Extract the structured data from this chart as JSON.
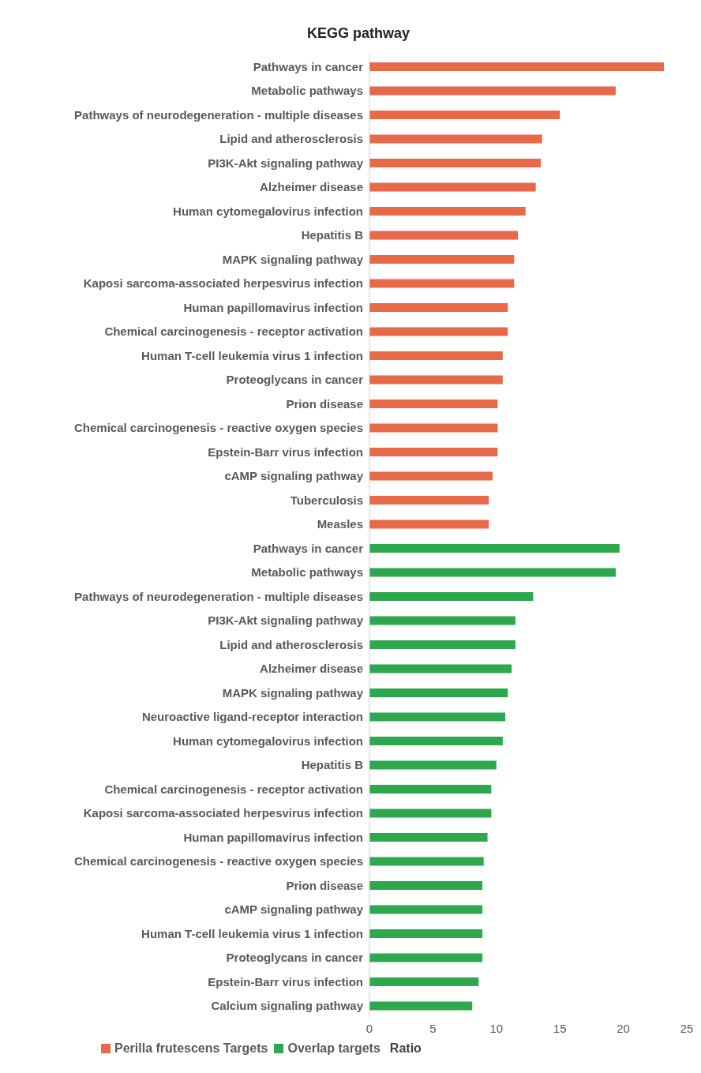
{
  "chart_data": {
    "type": "bar",
    "orientation": "horizontal",
    "title": "KEGG pathway",
    "xlabel": "Ratio",
    "categories": [
      "Pathways in cancer",
      "Metabolic pathways",
      "Pathways of neurodegeneration - multiple diseases",
      "Lipid and atherosclerosis",
      "PI3K-Akt signaling pathway",
      "Alzheimer disease",
      "Human cytomegalovirus infection",
      "Hepatitis B",
      "MAPK signaling pathway",
      "Kaposi sarcoma-associated herpesvirus infection",
      "Human papillomavirus infection",
      "Chemical carcinogenesis - receptor activation",
      "Human T-cell leukemia virus 1 infection",
      "Proteoglycans in cancer",
      "Prion disease",
      "Chemical carcinogenesis - reactive oxygen species",
      "Epstein-Barr virus infection",
      "cAMP signaling pathway",
      "Tuberculosis",
      "Measles",
      "Pathways in cancer",
      "Metabolic pathways",
      "Pathways of neurodegeneration - multiple diseases",
      "PI3K-Akt signaling pathway",
      "Lipid and atherosclerosis",
      "Alzheimer disease",
      "MAPK signaling pathway",
      "Neuroactive ligand-receptor interaction",
      "Human cytomegalovirus infection",
      "Hepatitis B",
      "Chemical carcinogenesis - receptor activation",
      "Kaposi sarcoma-associated herpesvirus infection",
      "Human papillomavirus infection",
      "Chemical carcinogenesis - reactive oxygen species",
      "Prion disease",
      "cAMP signaling pathway",
      "Human T-cell leukemia virus 1 infection",
      "Proteoglycans in cancer",
      "Epstein-Barr virus infection",
      "Calcium signaling pathway"
    ],
    "series": [
      {
        "name": "Perilla frutescens Targets",
        "color": "#e8694a",
        "values": [
          23.2,
          19.4,
          15.0,
          13.6,
          13.5,
          13.1,
          12.3,
          11.7,
          11.4,
          11.4,
          10.9,
          10.9,
          10.5,
          10.5,
          10.1,
          10.1,
          10.1,
          9.7,
          9.4,
          9.4,
          null,
          null,
          null,
          null,
          null,
          null,
          null,
          null,
          null,
          null,
          null,
          null,
          null,
          null,
          null,
          null,
          null,
          null,
          null,
          null
        ]
      },
      {
        "name": "Overlap targets",
        "color": "#2ea84e",
        "values": [
          null,
          null,
          null,
          null,
          null,
          null,
          null,
          null,
          null,
          null,
          null,
          null,
          null,
          null,
          null,
          null,
          null,
          null,
          null,
          null,
          19.7,
          19.4,
          12.9,
          11.5,
          11.5,
          11.2,
          10.9,
          10.7,
          10.5,
          10.0,
          9.6,
          9.6,
          9.3,
          9.0,
          8.9,
          8.9,
          8.9,
          8.9,
          8.6,
          8.1
        ]
      }
    ],
    "xlim": [
      0,
      25
    ],
    "xticks": [
      0,
      5,
      10,
      15,
      20,
      25
    ],
    "legend": "bottom"
  }
}
